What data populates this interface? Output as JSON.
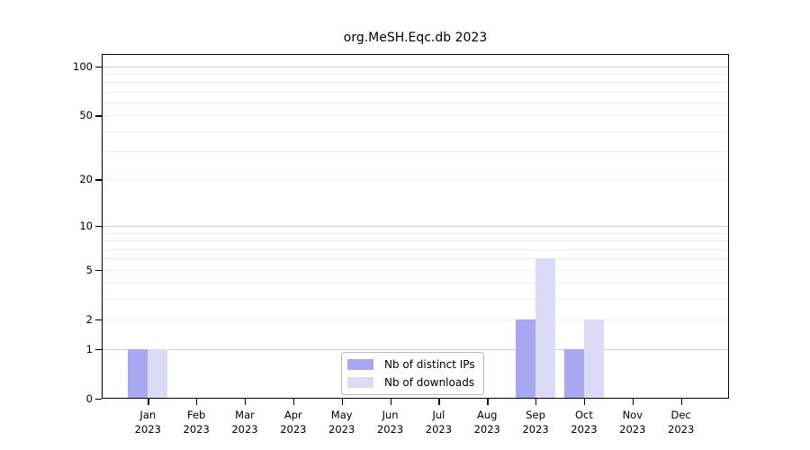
{
  "page": {
    "background": "#ffffff"
  },
  "chart_data": {
    "type": "bar",
    "title": "org.MeSH.Eqc.db 2023",
    "categories": [
      "Jan",
      "Feb",
      "Mar",
      "Apr",
      "May",
      "Jun",
      "Jul",
      "Aug",
      "Sep",
      "Oct",
      "Nov",
      "Dec"
    ],
    "category_year": "2023",
    "series": [
      {
        "name": "Nb of distinct IPs",
        "color": "#a8a8f2",
        "values": [
          1,
          0,
          0,
          0,
          0,
          0,
          0,
          0,
          2,
          1,
          0,
          0
        ]
      },
      {
        "name": "Nb of downloads",
        "color": "#dbdbf7",
        "values": [
          1,
          0,
          0,
          0,
          0,
          0,
          0,
          0,
          6,
          2,
          0,
          0
        ]
      }
    ],
    "xlabel": "",
    "ylabel": "",
    "yscale": "log1p",
    "ylim": [
      0,
      100
    ],
    "yticks": [
      0,
      1,
      2,
      5,
      10,
      20,
      50,
      100
    ],
    "grid_major": [
      1,
      10,
      100
    ],
    "grid_minor": [
      2,
      3,
      4,
      5,
      6,
      7,
      8,
      9,
      20,
      30,
      40,
      50,
      60,
      70,
      80,
      90
    ],
    "legend_position": "bottom-center"
  },
  "theme": {
    "grid_major_color": "#cfcfcf",
    "grid_minor_color": "#ececec",
    "axis_color": "#000000",
    "text_color": "#000000",
    "legend_border_color": "#b9b9b9",
    "legend_background": "#ffffff"
  }
}
